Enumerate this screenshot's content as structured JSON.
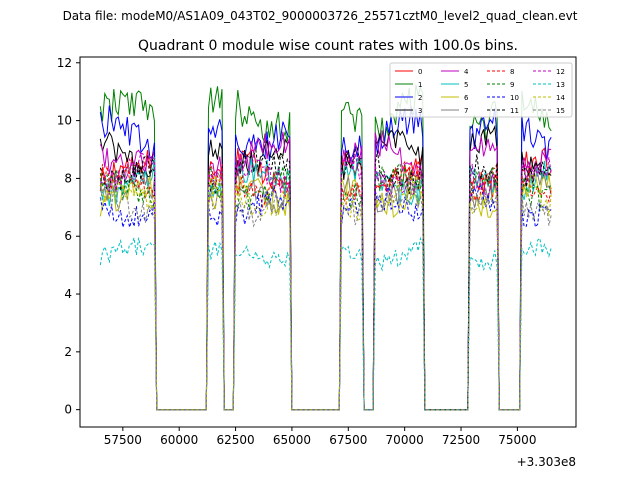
{
  "chart_data": {
    "type": "line",
    "suptitle": "Data file: modeM0/AS1A09_043T02_9000003726_25571cztM0_level2_quad_clean.evt",
    "title": "Quadrant 0 module wise count rates with 100.0s bins.",
    "xlabel": "",
    "ylabel": "",
    "x_offset_label": "+3.303e8",
    "xlim": [
      55600,
      77600
    ],
    "ylim": [
      -0.6,
      12.2
    ],
    "x_ticks": [
      57500,
      60000,
      62500,
      65000,
      67500,
      70000,
      72500,
      75000
    ],
    "x_tick_labels": [
      "57500",
      "60000",
      "62500",
      "65000",
      "67500",
      "70000",
      "72500",
      "75000"
    ],
    "y_ticks": [
      0,
      2,
      4,
      6,
      8,
      10,
      12
    ],
    "y_tick_labels": [
      "0",
      "2",
      "4",
      "6",
      "8",
      "10",
      "12"
    ],
    "legend_position": "top-right",
    "time_bin_seconds": 100,
    "on_intervals": [
      [
        56500,
        58900
      ],
      [
        61300,
        61900
      ],
      [
        62500,
        64900
      ],
      [
        67200,
        68100
      ],
      [
        68700,
        70800
      ],
      [
        72900,
        74100
      ],
      [
        75200,
        76500
      ]
    ],
    "series": [
      {
        "name": "0",
        "level": 8.2,
        "color": "#ff0000",
        "dash": false
      },
      {
        "name": "1",
        "level": 10.2,
        "color": "#008000",
        "dash": false
      },
      {
        "name": "2",
        "level": 9.5,
        "color": "#0000ff",
        "dash": false
      },
      {
        "name": "3",
        "level": 8.9,
        "color": "#000000",
        "dash": false
      },
      {
        "name": "4",
        "level": 8.8,
        "color": "#bf00bf",
        "dash": false
      },
      {
        "name": "5",
        "level": 7.9,
        "color": "#00bfbf",
        "dash": false
      },
      {
        "name": "6",
        "level": 7.4,
        "color": "#bfbf00",
        "dash": false
      },
      {
        "name": "7",
        "level": 7.6,
        "color": "#808080",
        "dash": false
      },
      {
        "name": "8",
        "level": 7.8,
        "color": "#ff0000",
        "dash": true
      },
      {
        "name": "9",
        "level": 7.7,
        "color": "#008000",
        "dash": true
      },
      {
        "name": "10",
        "level": 7.0,
        "color": "#0000ff",
        "dash": true
      },
      {
        "name": "11",
        "level": 8.3,
        "color": "#000000",
        "dash": true
      },
      {
        "name": "12",
        "level": 8.1,
        "color": "#bf00bf",
        "dash": true
      },
      {
        "name": "13",
        "level": 5.4,
        "color": "#00bfbf",
        "dash": true
      },
      {
        "name": "14",
        "level": 7.3,
        "color": "#bfbf00",
        "dash": true
      },
      {
        "name": "15",
        "level": 7.1,
        "color": "#808080",
        "dash": true
      }
    ]
  }
}
